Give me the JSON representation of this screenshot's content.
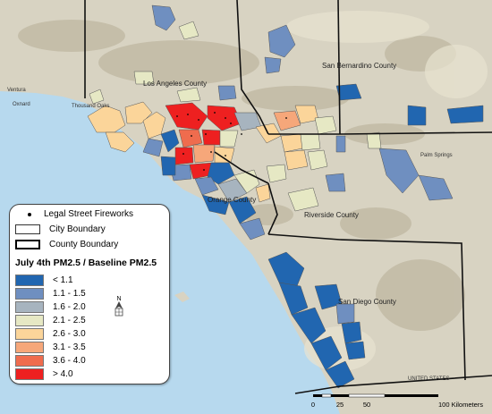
{
  "map": {
    "county_labels": {
      "los_angeles": "Los Angeles County",
      "san_bernardino": "San Bernardino County",
      "orange": "Orange County",
      "riverside": "Riverside County",
      "san_diego": "San Diego County"
    },
    "place_labels": {
      "ventura": "Ventura",
      "oxnard": "Oxnard",
      "thousand_oaks": "Thousand Oaks",
      "palm_springs": "Palm Springs",
      "united_states": "UNITED STATES"
    }
  },
  "legend": {
    "fireworks": "Legal Street Fireworks",
    "city_boundary": "City Boundary",
    "county_boundary": "County Boundary",
    "title": "July 4th PM2.5 / Baseline PM2.5",
    "classes": [
      {
        "label": "< 1.1",
        "color": "#2166b0"
      },
      {
        "label": "1.1 - 1.5",
        "color": "#6f8fc0"
      },
      {
        "label": "1.6 - 2.0",
        "color": "#a7b4bf"
      },
      {
        "label": "2.1 - 2.5",
        "color": "#e6e8c4"
      },
      {
        "label": "2.6 - 3.0",
        "color": "#fbd59a"
      },
      {
        "label": "3.1 - 3.5",
        "color": "#f6a77a"
      },
      {
        "label": "3.6 - 4.0",
        "color": "#ef6c4e"
      },
      {
        "label": "> 4.0",
        "color": "#ee2020"
      }
    ]
  },
  "north_arrow": "N",
  "scale_bar": {
    "ticks": [
      "0",
      "25",
      "50",
      "100 Kilometers"
    ]
  }
}
